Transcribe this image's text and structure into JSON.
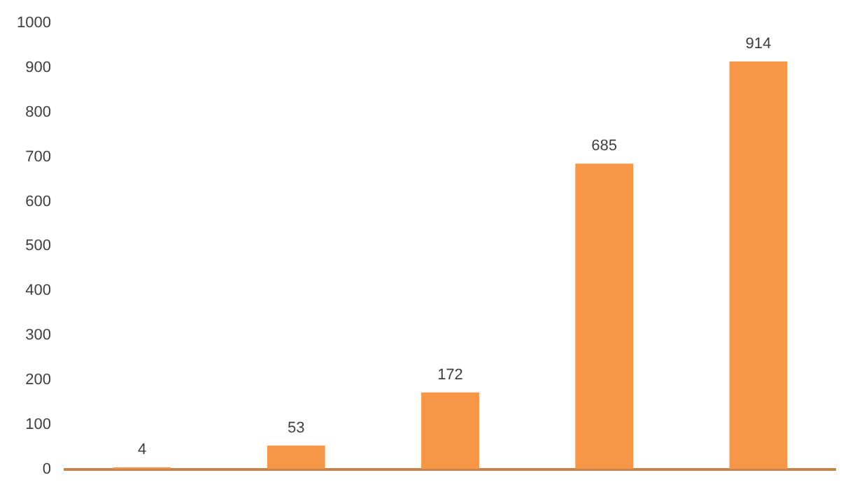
{
  "chart_data": {
    "type": "bar",
    "categories": [
      null,
      null,
      null,
      null,
      null
    ],
    "values": [
      4,
      53,
      172,
      685,
      914
    ],
    "color": "#f79646",
    "ylim": [
      0,
      1000
    ],
    "yticks": [
      0,
      100,
      200,
      300,
      400,
      500,
      600,
      700,
      800,
      900,
      1000
    ],
    "grid": false,
    "legend": false,
    "data_labels": true
  }
}
